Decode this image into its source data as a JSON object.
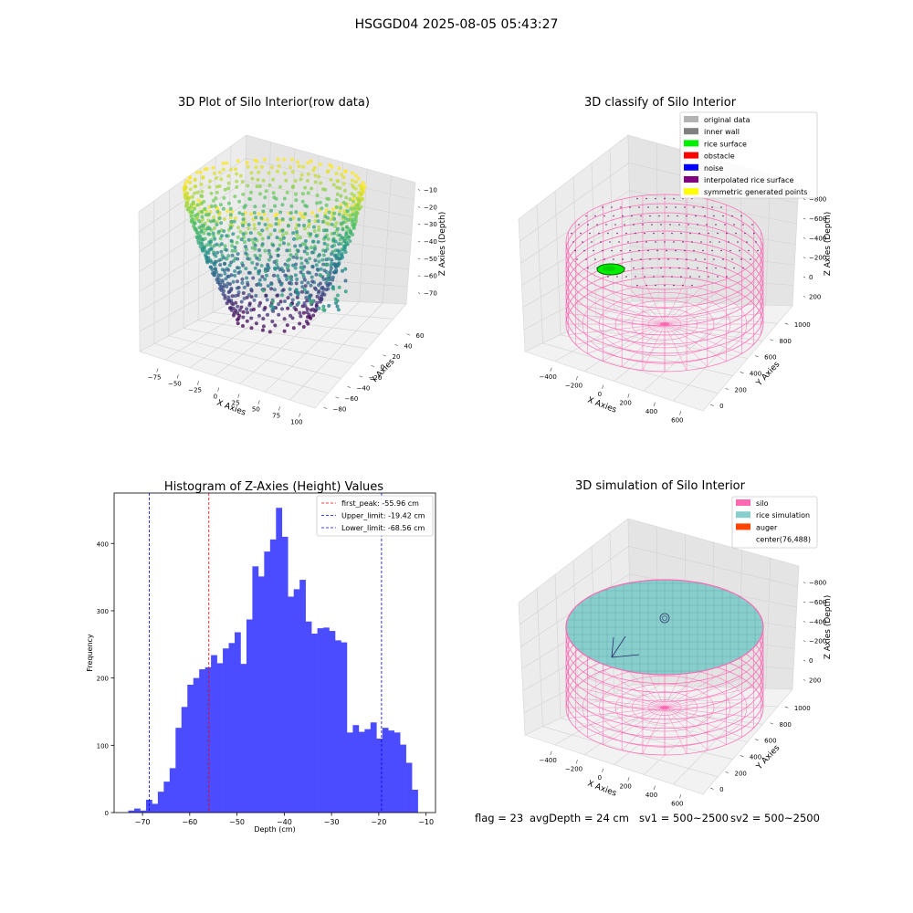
{
  "figure": {
    "suptitle": "HSGGD04 2025-08-05 05:43:27",
    "footer": {
      "flag": "flag = 23",
      "avg_depth": "avgDepth = 24 cm",
      "sv1": "sv1 = 500~2500",
      "sv2": "sv2 = 500~2500"
    }
  },
  "colors": {
    "histogram_bar": "#4b4bff",
    "first_peak_line": "#ff0000",
    "limit_lines": "#0000ff",
    "silo_wire": "#ff69b4",
    "rice_fill": "#87cecd",
    "rice_surface": "#00ee00"
  },
  "chart_data": [
    {
      "id": "raw3d",
      "type": "scatter",
      "projection": "3d",
      "title": "3D Plot of Silo Interior(row data)",
      "xlabel": "X Axies",
      "ylabel": "Y Axies",
      "zlabel": "Z Axies (Depth)",
      "colormap": "viridis",
      "xlim": [
        -90,
        100
      ],
      "ylim": [
        -85,
        70
      ],
      "zlim": [
        -78,
        -5
      ],
      "x_ticks": [
        "−75",
        "−50",
        "−25",
        "0",
        "25",
        "50",
        "75",
        "100"
      ],
      "y_ticks": [
        "−80",
        "−60",
        "−40",
        "−20",
        "0",
        "20",
        "40",
        "60"
      ],
      "z_ticks": [
        "−70",
        "−60",
        "−50",
        "−40",
        "−30",
        "−20",
        "−10"
      ],
      "grid": true
    },
    {
      "id": "classify3d",
      "type": "scatter",
      "projection": "3d",
      "title": "3D classify of Silo Interior",
      "xlabel": "X Axies",
      "ylabel": "Y Axies",
      "zlabel": "Z Axies (Depth)",
      "legend_position": "top-right",
      "legend": [
        {
          "label": "original data",
          "color": "#b3b3b3"
        },
        {
          "label": "inner wall",
          "color": "#808080"
        },
        {
          "label": "rice surface",
          "color": "#00ee00"
        },
        {
          "label": "obstacle",
          "color": "#ff0000"
        },
        {
          "label": "noise",
          "color": "#0000ff"
        },
        {
          "label": "interpolated rice surface",
          "color": "#800080"
        },
        {
          "label": "symmetric generated points",
          "color": "#ffff00"
        }
      ],
      "x_ticks": [
        "−400",
        "−200",
        "0",
        "200",
        "400",
        "600"
      ],
      "y_ticks": [
        "0",
        "200",
        "400",
        "600",
        "800",
        "1000"
      ],
      "z_ticks": [
        "−800",
        "−600",
        "−400",
        "−200",
        "0",
        "200"
      ],
      "grid": true
    },
    {
      "id": "histogram",
      "type": "bar",
      "title": "Histogram of Z-Axies (Height) Values",
      "xlabel": "Depth (cm)",
      "ylabel": "Frequency",
      "xlim": [
        -76,
        -8
      ],
      "ylim": [
        0,
        475
      ],
      "bin_start": -73.0,
      "bin_width": 1.25,
      "values": [
        3,
        6,
        3,
        19,
        13,
        31,
        46,
        66,
        126,
        157,
        190,
        200,
        213,
        216,
        234,
        222,
        244,
        252,
        268,
        221,
        287,
        366,
        351,
        388,
        406,
        453,
        410,
        321,
        332,
        346,
        284,
        266,
        274,
        275,
        270,
        256,
        253,
        119,
        130,
        120,
        124,
        134,
        110,
        126,
        122,
        119,
        101,
        74,
        34
      ],
      "x_ticks": [
        "−70",
        "−60",
        "−50",
        "−40",
        "−30",
        "−20",
        "−10"
      ],
      "y_ticks": [
        "0",
        "100",
        "200",
        "300",
        "400"
      ],
      "lines": [
        {
          "label": "first_peak: -55.96 cm",
          "x": -55.96,
          "color": "#ff0000"
        },
        {
          "label": "Upper_limit: -19.42 cm",
          "x": -19.42,
          "color": "#0000ff"
        },
        {
          "label": "Lower_limit: -68.56 cm",
          "x": -68.56,
          "color": "#0000ff"
        }
      ],
      "legend_position": "top-right"
    },
    {
      "id": "sim3d",
      "type": "area",
      "projection": "3d",
      "title": "3D simulation of Silo Interior",
      "xlabel": "X Axies",
      "ylabel": "Y Axies",
      "zlabel": "Z Axies (Depth)",
      "legend_position": "top-right",
      "legend": [
        {
          "label": "silo",
          "color": "#ff69b4"
        },
        {
          "label": "rice simulation",
          "color": "#87cecd"
        },
        {
          "label": "auger",
          "color": "#ff4500"
        },
        {
          "label": "center(76,488)",
          "color": ""
        }
      ],
      "x_ticks": [
        "−400",
        "−200",
        "0",
        "200",
        "400",
        "600"
      ],
      "y_ticks": [
        "0",
        "200",
        "400",
        "600",
        "800",
        "1000"
      ],
      "z_ticks": [
        "−800",
        "−600",
        "−400",
        "−200",
        "0",
        "200"
      ],
      "grid": true
    }
  ]
}
